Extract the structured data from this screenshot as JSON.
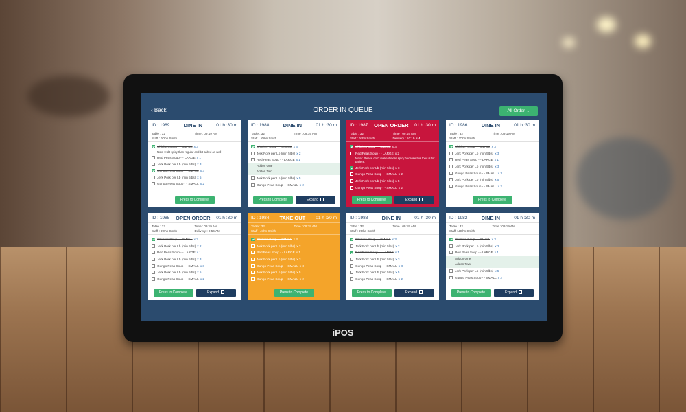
{
  "header": {
    "back": "Back",
    "title": "ORDER IN QUEUE",
    "filter": "All Order"
  },
  "brand": "iPOS",
  "cards": [
    {
      "id": "ID : 1989",
      "kind": "DINE IN",
      "timer": "01 h :30 m",
      "color": "#ffffff",
      "info": [
        "Table : 32",
        "Time : 09:19 AM",
        "Staff : JOhn Smith"
      ],
      "items": [
        {
          "text": "Chicken Soup - - SMALL",
          "qty": "x 3",
          "done": true,
          "note": "Note : I dit spicy than regular and bit salted as well"
        },
        {
          "text": "Red Peas Soup - - LARGE",
          "qty": "x 1",
          "done": false
        },
        {
          "text": "Jerk Pork per Lb (min 5lbs)",
          "qty": "x 3",
          "done": false
        },
        {
          "text": "Gungo Peas Soup - - SMALL",
          "qty": "x 3",
          "done": true
        },
        {
          "text": "Jerk Pork per Lb (min 5lbs)",
          "qty": "x 5",
          "done": false
        },
        {
          "text": "Gungo Peas Soup - - SMALL",
          "qty": "x 2",
          "done": false
        }
      ],
      "buttons": [
        "Press to Complete"
      ]
    },
    {
      "id": "ID : 1988",
      "kind": "DINE IN",
      "timer": "01 h :30 m",
      "color": "#ffffff",
      "info": [
        "Table : 32",
        "Time : 09:19 AM",
        "Staff : JOhn Smith"
      ],
      "items": [
        {
          "text": "Chicken Soup - - SMALL",
          "qty": "x 3",
          "done": true
        },
        {
          "text": "Jerk Pork per Lb (min 5lbs)",
          "qty": "x 2",
          "done": false
        },
        {
          "text": "Red Peas Soup - - LARGE",
          "qty": "x 1",
          "done": false,
          "addons": [
            "Addon One",
            "Addon Two"
          ]
        },
        {
          "text": "Jerk Pork per Lb (min 5lbs)",
          "qty": "x 5",
          "done": false
        },
        {
          "text": "Gungo Peas Soup - - SMALL",
          "qty": "x 2",
          "done": false
        }
      ],
      "buttons": [
        "Press to Complete",
        "Expand"
      ]
    },
    {
      "id": "ID : 1987",
      "kind": "OPEN ORDER",
      "timer": "01 h :30 m",
      "color": "#c8153d",
      "info": [
        "Table : 32",
        "Time : 09:19 AM",
        "Staff : John Smith",
        "Delivery : 10:19 AM"
      ],
      "items": [
        {
          "text": "Chicken Soup - - SMALL",
          "qty": "x 3",
          "done": true
        },
        {
          "text": "Red Peas Soup - - LARGE",
          "qty": "x 2",
          "done": false,
          "note": "Note : Please don't make it more spicy because this food is for patient."
        },
        {
          "text": "Jerk Pork per Lb (min 5lbs)",
          "qty": "x 3",
          "done": true
        },
        {
          "text": "Gungo Peas Soup - - SMALL",
          "qty": "x 2",
          "done": false
        },
        {
          "text": "Jerk Pork per Lb (min 5lbs)",
          "qty": "x 5",
          "done": false
        },
        {
          "text": "Gungo Peas Soup - - SMALL",
          "qty": "x 2",
          "done": false
        }
      ],
      "buttons": [
        "Press to Complete",
        "Expand"
      ]
    },
    {
      "id": "ID : 1986",
      "kind": "DINE IN",
      "timer": "01 h :30 m",
      "color": "#ffffff",
      "info": [
        "Table : 32",
        "Time : 09:19 AM",
        "Staff : JOhn Smith"
      ],
      "items": [
        {
          "text": "Chicken Soup - - SMALL",
          "qty": "x 3",
          "done": true
        },
        {
          "text": "Jerk Pork per Lb (min 5lbs)",
          "qty": "x 3",
          "done": false
        },
        {
          "text": "Red Peas Soup - - LARGE",
          "qty": "x 1",
          "done": false
        },
        {
          "text": "Jerk Pork per Lb (min 5lbs)",
          "qty": "x 3",
          "done": false
        },
        {
          "text": "Gungo Peas Soup - - SMALL",
          "qty": "x 3",
          "done": false
        },
        {
          "text": "Jerk Pork per Lb (min 5lbs)",
          "qty": "x 5",
          "done": false
        },
        {
          "text": "Gungo Peas Soup - - SMALL",
          "qty": "x 2",
          "done": false
        }
      ],
      "buttons": [
        "Press to Complete"
      ]
    },
    {
      "id": "ID : 1985",
      "kind": "OPEN ORDER",
      "timer": "01 h :30 m",
      "color": "#ffffff",
      "info": [
        "Table : 32",
        "Time : 09:19 AM",
        "Staff : JOhn Smith",
        "Delivery : 9:56 AM"
      ],
      "items": [
        {
          "text": "Chicken Soup - - SMALL",
          "qty": "x 3",
          "done": true
        },
        {
          "text": "Jerk Pork per Lb (min 5lbs)",
          "qty": "x 2",
          "done": false
        },
        {
          "text": "Red Peas Soup - - LARGE",
          "qty": "x 1",
          "done": false
        },
        {
          "text": "Jerk Pork per Lb (min 5lbs)",
          "qty": "x 3",
          "done": false
        },
        {
          "text": "Gungo Peas Soup - - SMALL",
          "qty": "x 3",
          "done": false
        },
        {
          "text": "Jerk Pork per Lb (min 5lbs)",
          "qty": "x 5",
          "done": false
        },
        {
          "text": "Gungo Peas Soup - - SMALL",
          "qty": "x 2",
          "done": false
        }
      ],
      "buttons": [
        "Press to Complete",
        "Expand"
      ]
    },
    {
      "id": "ID : 1984",
      "kind": "TAKE OUT",
      "timer": "01 h :30 m",
      "color": "#f4a42a",
      "info": [
        "Table : 32",
        "Time : 09:19 AM",
        "Staff : John Smith"
      ],
      "items": [
        {
          "text": "Chicken Soup - - SMALL",
          "qty": "x 3",
          "done": true
        },
        {
          "text": "Jerk Pork per Lb (min 5lbs)",
          "qty": "x 2",
          "done": false
        },
        {
          "text": "Red Peas Soup - - LARGE",
          "qty": "x 1",
          "done": false
        },
        {
          "text": "Jerk Pork per Lb (min 5lbs)",
          "qty": "x 3",
          "done": false
        },
        {
          "text": "Gungo Peas Soup - - SMALL",
          "qty": "x 3",
          "done": false
        },
        {
          "text": "Jerk Pork per Lb (min 5lbs)",
          "qty": "x 5",
          "done": false
        },
        {
          "text": "Gungo Peas Soup - - SMALL",
          "qty": "x 2",
          "done": false
        }
      ],
      "buttons": [
        "Press to Complete"
      ]
    },
    {
      "id": "ID : 1983",
      "kind": "DINE IN",
      "timer": "01 h :30 m",
      "color": "#ffffff",
      "info": [
        "Table : 32",
        "Time : 09:19 AM",
        "Staff : JOhn Smith"
      ],
      "items": [
        {
          "text": "Chicken Soup - - SMALL",
          "qty": "x 3",
          "done": true
        },
        {
          "text": "Jerk Pork per Lb (min 5lbs)",
          "qty": "x 2",
          "done": false
        },
        {
          "text": "Red Peas Soup - - LARGE",
          "qty": "x 1",
          "done": true
        },
        {
          "text": "Jerk Pork per Lb (min 5lbs)",
          "qty": "x 3",
          "done": false
        },
        {
          "text": "Gungo Peas Soup - - SMALL",
          "qty": "x 3",
          "done": false
        },
        {
          "text": "Jerk Pork per Lb (min 5lbs)",
          "qty": "x 5",
          "done": false
        },
        {
          "text": "Gungo Peas Soup - - SMALL",
          "qty": "x 2",
          "done": false
        }
      ],
      "buttons": [
        "Press to Complete",
        "Expand"
      ]
    },
    {
      "id": "ID : 1982",
      "kind": "DINE IN",
      "timer": "01 h :30 m",
      "color": "#ffffff",
      "info": [
        "Table : 32",
        "Time : 09:19 AM",
        "Staff : JOhn Smith"
      ],
      "items": [
        {
          "text": "Chicken Soup - - SMALL",
          "qty": "x 3",
          "done": true
        },
        {
          "text": "Jerk Pork per Lb (min 5lbs)",
          "qty": "x 2",
          "done": false
        },
        {
          "text": "Red Peas Soup - - LARGE",
          "qty": "x 1",
          "done": false,
          "addons": [
            "Addon One",
            "Addon Two"
          ]
        },
        {
          "text": "Jerk Pork per Lb (min 5lbs)",
          "qty": "x 5",
          "done": false
        },
        {
          "text": "Gungo Peas Soup - - SMALL",
          "qty": "x 2",
          "done": false
        }
      ],
      "buttons": [
        "Press to Complete",
        "Expand"
      ]
    }
  ]
}
